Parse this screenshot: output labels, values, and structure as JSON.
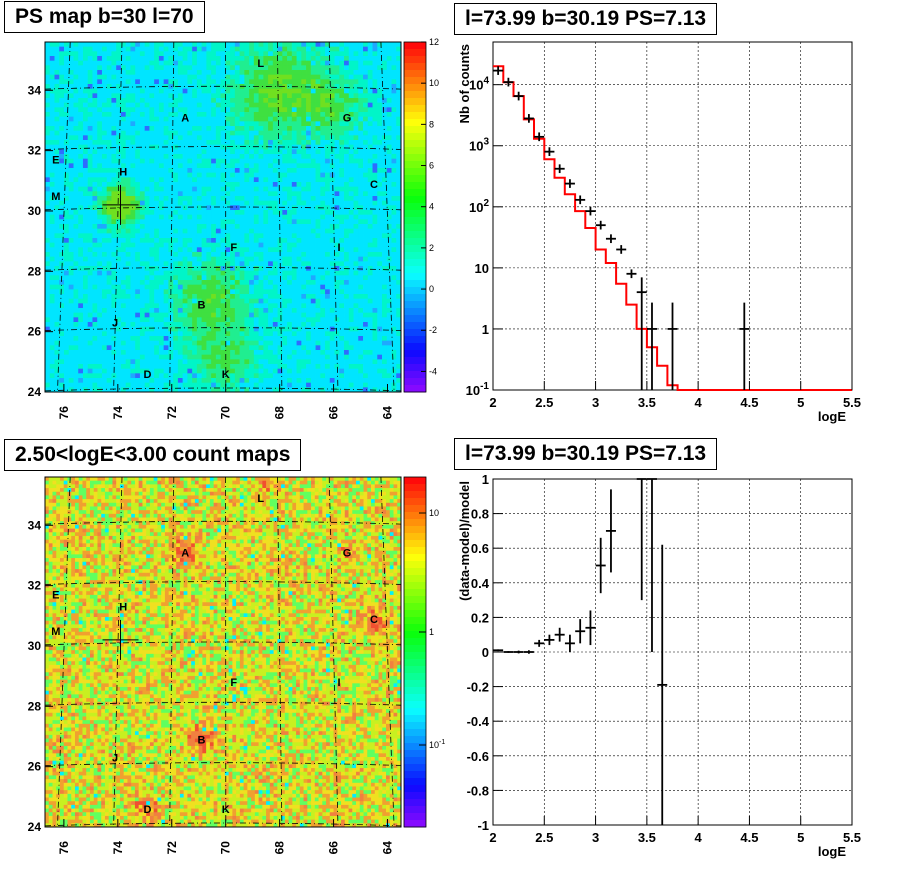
{
  "panels": {
    "top_left_title": "PS map b=30 l=70",
    "top_right_title": "l=73.99 b=30.19 PS=7.13",
    "bottom_left_title": "2.50<logE<3.00 count maps",
    "bottom_right_title": "l=73.99 b=30.19 PS=7.13"
  },
  "chart_data": [
    {
      "type": "heatmap",
      "title": "PS map b=30 l=70",
      "xlim": [
        76.7,
        63.5
      ],
      "ylim": [
        24,
        35.6
      ],
      "x_ticks": [
        "76",
        "74",
        "72",
        "70",
        "68",
        "66",
        "64"
      ],
      "y_ticks": [
        "24",
        "26",
        "28",
        "30",
        "32",
        "34"
      ],
      "colorbar_ticks": [
        "12",
        "10",
        "8",
        "6",
        "4",
        "2",
        "0",
        "-2",
        "-4"
      ],
      "colorbar_range": [
        -5,
        12
      ],
      "source_labels": [
        {
          "label": "L",
          "l": 68.7,
          "b": 34.9
        },
        {
          "label": "A",
          "l": 71.5,
          "b": 33.1
        },
        {
          "label": "G",
          "l": 65.5,
          "b": 33.1
        },
        {
          "label": "E",
          "l": 76.3,
          "b": 31.7
        },
        {
          "label": "H",
          "l": 73.8,
          "b": 31.3
        },
        {
          "label": "M",
          "l": 76.3,
          "b": 30.5
        },
        {
          "label": "C",
          "l": 64.5,
          "b": 30.9
        },
        {
          "label": "F",
          "l": 69.7,
          "b": 28.8
        },
        {
          "label": "I",
          "l": 65.8,
          "b": 28.8
        },
        {
          "label": "B",
          "l": 70.9,
          "b": 26.9
        },
        {
          "label": "J",
          "l": 74.1,
          "b": 26.3
        },
        {
          "label": "D",
          "l": 72.9,
          "b": 24.6
        },
        {
          "label": "K",
          "l": 70.0,
          "b": 24.6
        }
      ]
    },
    {
      "type": "line",
      "title": "l=73.99 b=30.19 PS=7.13",
      "xlabel": "logE",
      "ylabel": "Nb of counts",
      "xlim": [
        2,
        5.5
      ],
      "ylim": [
        0.1,
        50000
      ],
      "yscale": "log",
      "x_ticks": [
        "2",
        "2.5",
        "3",
        "3.5",
        "4",
        "4.5",
        "5",
        "5.5"
      ],
      "y_ticks": [
        "10^-1",
        "1",
        "10",
        "10^2",
        "10^3",
        "10^4"
      ],
      "grid": true,
      "model_step": {
        "bin_edges": [
          2.0,
          2.1,
          2.2,
          2.3,
          2.4,
          2.5,
          2.6,
          2.7,
          2.8,
          2.9,
          3.0,
          3.1,
          3.2,
          3.3,
          3.4,
          3.5,
          3.6,
          3.7,
          3.8,
          3.9,
          4.0,
          5.5
        ],
        "values": [
          20000,
          11000,
          6500,
          2700,
          1300,
          600,
          300,
          160,
          85,
          45,
          20,
          12,
          5.5,
          2.5,
          1.0,
          0.5,
          0.25,
          0.12,
          0.1,
          0.1,
          0.1
        ]
      },
      "data_points": [
        {
          "x": 2.05,
          "y": 17000
        },
        {
          "x": 2.15,
          "y": 11000
        },
        {
          "x": 2.25,
          "y": 6500
        },
        {
          "x": 2.35,
          "y": 2800
        },
        {
          "x": 2.45,
          "y": 1400
        },
        {
          "x": 2.55,
          "y": 800
        },
        {
          "x": 2.65,
          "y": 420
        },
        {
          "x": 2.75,
          "y": 240
        },
        {
          "x": 2.85,
          "y": 130
        },
        {
          "x": 2.95,
          "y": 85
        },
        {
          "x": 3.05,
          "y": 50
        },
        {
          "x": 3.15,
          "y": 30
        },
        {
          "x": 3.25,
          "y": 20
        },
        {
          "x": 3.35,
          "y": 8
        },
        {
          "x": 3.45,
          "y": 4,
          "ylow": 0.1,
          "yhigh": 7
        },
        {
          "x": 3.55,
          "y": 1,
          "ylow": 0.1,
          "yhigh": 2.7
        },
        {
          "x": 3.75,
          "y": 1,
          "ylow": 0.1,
          "yhigh": 2.7
        },
        {
          "x": 4.45,
          "y": 1,
          "ylow": 0.1,
          "yhigh": 2.7
        }
      ]
    },
    {
      "type": "heatmap",
      "title": "2.50<logE<3.00 count maps",
      "xlim": [
        76.7,
        63.5
      ],
      "ylim": [
        24,
        35.6
      ],
      "x_ticks": [
        "76",
        "74",
        "72",
        "70",
        "68",
        "66",
        "64"
      ],
      "y_ticks": [
        "24",
        "26",
        "28",
        "30",
        "32",
        "34"
      ],
      "colorbar_ticks": [
        "10",
        "1",
        "10^-1"
      ],
      "colorbar_scale": "log",
      "source_labels": [
        {
          "label": "L",
          "l": 68.7,
          "b": 34.9
        },
        {
          "label": "A",
          "l": 71.5,
          "b": 33.1
        },
        {
          "label": "G",
          "l": 65.5,
          "b": 33.1
        },
        {
          "label": "E",
          "l": 76.3,
          "b": 31.7
        },
        {
          "label": "H",
          "l": 73.8,
          "b": 31.3
        },
        {
          "label": "M",
          "l": 76.3,
          "b": 30.5
        },
        {
          "label": "C",
          "l": 64.5,
          "b": 30.9
        },
        {
          "label": "F",
          "l": 69.7,
          "b": 28.8
        },
        {
          "label": "I",
          "l": 65.8,
          "b": 28.8
        },
        {
          "label": "B",
          "l": 70.9,
          "b": 26.9
        },
        {
          "label": "J",
          "l": 74.1,
          "b": 26.3
        },
        {
          "label": "D",
          "l": 72.9,
          "b": 24.6
        },
        {
          "label": "K",
          "l": 70.0,
          "b": 24.6
        }
      ]
    },
    {
      "type": "scatter",
      "title": "l=73.99 b=30.19 PS=7.13",
      "xlabel": "logE",
      "ylabel": "(data-model)/model",
      "xlim": [
        2,
        5.5
      ],
      "ylim": [
        -1,
        1
      ],
      "x_ticks": [
        "2",
        "2.5",
        "3",
        "3.5",
        "4",
        "4.5",
        "5",
        "5.5"
      ],
      "y_ticks": [
        "-1",
        "-0.8",
        "-0.6",
        "-0.4",
        "-0.2",
        "0",
        "0.2",
        "0.4",
        "0.6",
        "0.8",
        "1"
      ],
      "grid": true,
      "points": [
        {
          "x": 2.05,
          "y": 0.01,
          "err": 0.005
        },
        {
          "x": 2.15,
          "y": 0.0,
          "err": 0.005
        },
        {
          "x": 2.25,
          "y": 0.0,
          "err": 0.008
        },
        {
          "x": 2.35,
          "y": 0.0,
          "err": 0.01
        },
        {
          "x": 2.45,
          "y": 0.05,
          "err": 0.02
        },
        {
          "x": 2.55,
          "y": 0.07,
          "err": 0.03
        },
        {
          "x": 2.65,
          "y": 0.1,
          "err": 0.04
        },
        {
          "x": 2.75,
          "y": 0.05,
          "err": 0.05
        },
        {
          "x": 2.85,
          "y": 0.12,
          "err": 0.07
        },
        {
          "x": 2.95,
          "y": 0.14,
          "err": 0.1
        },
        {
          "x": 3.05,
          "y": 0.5,
          "err": 0.16
        },
        {
          "x": 3.15,
          "y": 0.7,
          "err": 0.24
        },
        {
          "x": 3.45,
          "y": 1.0,
          "err": 0.7
        },
        {
          "x": 3.55,
          "y": 1.0,
          "err": 1.0
        },
        {
          "x": 3.65,
          "y": -0.19,
          "err": 0.81
        }
      ]
    }
  ]
}
